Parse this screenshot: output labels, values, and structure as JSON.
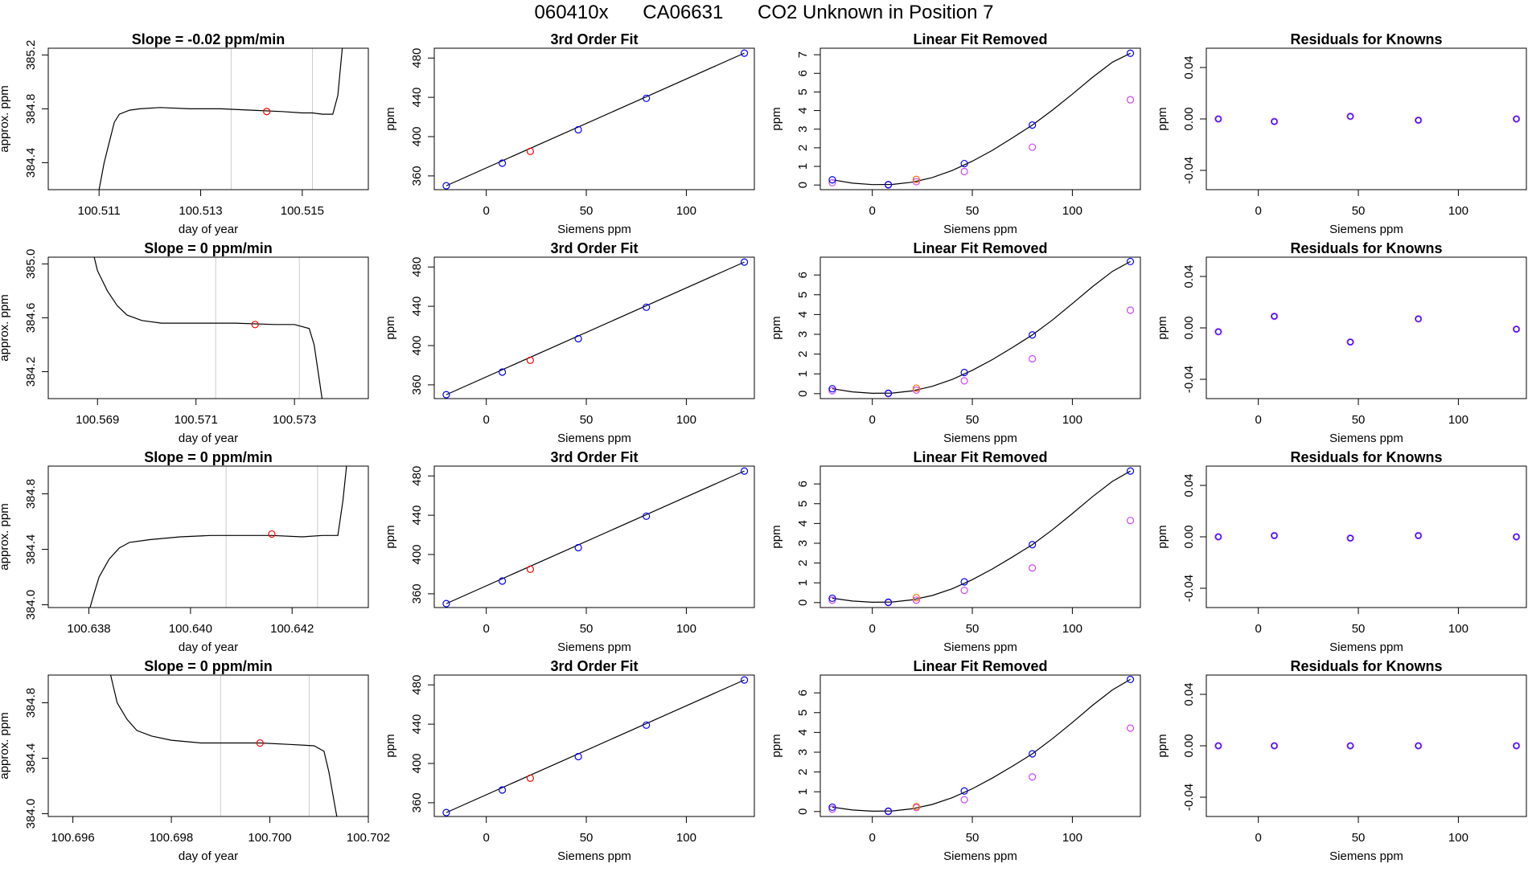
{
  "header": {
    "run_id": "060410x",
    "tank_id": "CA06631",
    "description": "CO2 Unknown in Position  7"
  },
  "colors": {
    "known": "#0000ff",
    "unknown": "#ff0000",
    "residual_unknown": "#ff6a00",
    "nonlinear_points": "#cc44ff",
    "vertical_lines": "#cccccc",
    "trace": "#000000"
  },
  "chart_data": [
    {
      "type": "line",
      "title": "Slope =  -0.02  ppm/min",
      "xlabel": "day of year",
      "ylabel": "approx. ppm",
      "xlim": [
        100.51,
        100.5163
      ],
      "ylim": [
        384.2,
        385.25
      ],
      "xticks": [
        "100.511",
        "100.513",
        "100.515"
      ],
      "xtick_values": [
        100.511,
        100.513,
        100.515
      ],
      "yticks": [
        "384.4",
        "384.8",
        "385.2"
      ],
      "ytick_values": [
        384.4,
        384.8,
        385.2
      ],
      "vlines": [
        100.5136,
        100.5152
      ],
      "trace": {
        "x": [
          100.511,
          100.5111,
          100.5112,
          100.5113,
          100.5114,
          100.5116,
          100.5118,
          100.5122,
          100.5128,
          100.5134,
          100.514,
          100.5146,
          100.515,
          100.5152,
          100.5154,
          100.5156,
          100.5157,
          100.5158
        ],
        "y": [
          384.2,
          384.4,
          384.55,
          384.7,
          384.76,
          384.79,
          384.8,
          384.81,
          384.8,
          384.8,
          384.79,
          384.78,
          384.77,
          384.77,
          384.76,
          384.76,
          384.9,
          385.3
        ]
      },
      "marker": {
        "x": 100.5143,
        "y": 384.78
      }
    },
    {
      "type": "scatter",
      "title": "3rd Order Fit",
      "xlabel": "Siemens ppm",
      "ylabel": "ppm",
      "xlim": [
        -26,
        134
      ],
      "ylim": [
        346,
        490
      ],
      "xticks": [
        "0",
        "50",
        "100"
      ],
      "xtick_values": [
        0,
        50,
        100
      ],
      "yticks": [
        "360",
        "400",
        "440",
        "480"
      ],
      "ytick_values": [
        360,
        400,
        440,
        480
      ],
      "known": {
        "x": [
          -20,
          8,
          46,
          80,
          129
        ],
        "y": [
          350,
          373,
          407,
          439,
          485
        ]
      },
      "unknown": {
        "x": [
          22
        ],
        "y": [
          385
        ]
      },
      "fit_line": {
        "x": [
          -20,
          129
        ],
        "y": [
          350,
          485
        ]
      }
    },
    {
      "type": "scatter",
      "title": "Linear Fit Removed",
      "xlabel": "Siemens ppm",
      "ylabel": "ppm",
      "xlim": [
        -26,
        134
      ],
      "ylim": [
        -0.25,
        7.35
      ],
      "xticks": [
        "0",
        "50",
        "100"
      ],
      "xtick_values": [
        0,
        50,
        100
      ],
      "yticks": [
        "0",
        "1",
        "2",
        "3",
        "4",
        "5",
        "6",
        "7"
      ],
      "ytick_values": [
        0,
        1,
        2,
        3,
        4,
        5,
        6,
        7
      ],
      "known": {
        "x": [
          -20,
          8,
          46,
          80,
          129
        ],
        "y": [
          0.28,
          0.02,
          1.15,
          3.22,
          7.08
        ]
      },
      "unknown": {
        "x": [
          22
        ],
        "y": [
          0.3
        ]
      },
      "secondary": {
        "x": [
          -20,
          8,
          22,
          46,
          80,
          129
        ],
        "y": [
          0.12,
          0.0,
          0.18,
          0.72,
          2.03,
          4.58
        ]
      },
      "curve": {
        "x": [
          -20,
          -10,
          0,
          10,
          20,
          30,
          40,
          50,
          60,
          70,
          80,
          90,
          100,
          110,
          120,
          129
        ],
        "y": [
          0.28,
          0.1,
          0.02,
          0.03,
          0.15,
          0.4,
          0.78,
          1.28,
          1.86,
          2.53,
          3.22,
          4.02,
          4.88,
          5.78,
          6.6,
          7.08
        ]
      }
    },
    {
      "type": "scatter",
      "title": "Residuals for Knowns",
      "xlabel": "Siemens ppm",
      "ylabel": "ppm",
      "xlim": [
        -26,
        134
      ],
      "ylim": [
        -0.055,
        0.055
      ],
      "xticks": [
        "0",
        "50",
        "100"
      ],
      "xtick_values": [
        0,
        50,
        100
      ],
      "yticks": [
        "-0.04",
        "0.00",
        "0.04"
      ],
      "ytick_values": [
        -0.04,
        0.0,
        0.04
      ],
      "known": {
        "x": [
          -20,
          8,
          46,
          80,
          129
        ],
        "y": [
          0.0,
          -0.002,
          0.002,
          -0.001,
          0.0
        ]
      }
    },
    {
      "type": "line",
      "title": "Slope =  0  ppm/min",
      "xlabel": "day of year",
      "ylabel": "approx. ppm",
      "xlim": [
        100.568,
        100.5745
      ],
      "ylim": [
        384.0,
        385.05
      ],
      "xticks": [
        "100.569",
        "100.571",
        "100.573"
      ],
      "xtick_values": [
        100.569,
        100.571,
        100.573
      ],
      "yticks": [
        "384.2",
        "384.6",
        "385.0"
      ],
      "ytick_values": [
        384.2,
        384.6,
        385.0
      ],
      "vlines": [
        100.5714,
        100.5731
      ],
      "trace": {
        "x": [
          100.5689,
          100.569,
          100.5692,
          100.5694,
          100.5696,
          100.5699,
          100.5703,
          100.571,
          100.5718,
          100.5726,
          100.573,
          100.5733,
          100.5734,
          100.5735,
          100.5736
        ],
        "y": [
          385.1,
          384.95,
          384.8,
          384.69,
          384.62,
          384.58,
          384.56,
          384.56,
          384.56,
          384.55,
          384.55,
          384.52,
          384.4,
          384.15,
          383.9
        ]
      },
      "marker": {
        "x": 100.5722,
        "y": 384.55
      }
    },
    {
      "type": "scatter",
      "title": "3rd Order Fit",
      "xlabel": "Siemens ppm",
      "ylabel": "ppm",
      "xlim": [
        -26,
        134
      ],
      "ylim": [
        346,
        490
      ],
      "xticks": [
        "0",
        "50",
        "100"
      ],
      "xtick_values": [
        0,
        50,
        100
      ],
      "yticks": [
        "360",
        "400",
        "440",
        "480"
      ],
      "ytick_values": [
        360,
        400,
        440,
        480
      ],
      "known": {
        "x": [
          -20,
          8,
          46,
          80,
          129
        ],
        "y": [
          350,
          373,
          407,
          439,
          485
        ]
      },
      "unknown": {
        "x": [
          22
        ],
        "y": [
          385
        ]
      },
      "fit_line": {
        "x": [
          -20,
          129
        ],
        "y": [
          350,
          485
        ]
      }
    },
    {
      "type": "scatter",
      "title": "Linear Fit Removed",
      "xlabel": "Siemens ppm",
      "ylabel": "ppm",
      "xlim": [
        -26,
        134
      ],
      "ylim": [
        -0.25,
        6.9
      ],
      "xticks": [
        "0",
        "50",
        "100"
      ],
      "xtick_values": [
        0,
        50,
        100
      ],
      "yticks": [
        "0",
        "1",
        "2",
        "3",
        "4",
        "5",
        "6"
      ],
      "ytick_values": [
        0,
        1,
        2,
        3,
        4,
        5,
        6
      ],
      "known": {
        "x": [
          -20,
          8,
          46,
          80,
          129
        ],
        "y": [
          0.25,
          0.02,
          1.07,
          2.97,
          6.68
        ]
      },
      "unknown": {
        "x": [
          22
        ],
        "y": [
          0.28
        ]
      },
      "secondary": {
        "x": [
          -20,
          8,
          22,
          46,
          80,
          129
        ],
        "y": [
          0.15,
          0.0,
          0.18,
          0.65,
          1.76,
          4.22
        ]
      },
      "curve": {
        "x": [
          -20,
          -10,
          0,
          10,
          20,
          30,
          40,
          50,
          60,
          70,
          80,
          90,
          100,
          110,
          120,
          129
        ],
        "y": [
          0.25,
          0.09,
          0.02,
          0.03,
          0.14,
          0.37,
          0.72,
          1.18,
          1.72,
          2.33,
          2.97,
          3.72,
          4.55,
          5.4,
          6.18,
          6.68
        ]
      }
    },
    {
      "type": "scatter",
      "title": "Residuals for Knowns",
      "xlabel": "Siemens ppm",
      "ylabel": "ppm",
      "xlim": [
        -26,
        134
      ],
      "ylim": [
        -0.055,
        0.055
      ],
      "xticks": [
        "0",
        "50",
        "100"
      ],
      "xtick_values": [
        0,
        50,
        100
      ],
      "yticks": [
        "-0.04",
        "0.00",
        "0.04"
      ],
      "ytick_values": [
        -0.04,
        0.0,
        0.04
      ],
      "known": {
        "x": [
          -20,
          8,
          46,
          80,
          129
        ],
        "y": [
          -0.003,
          0.009,
          -0.011,
          0.007,
          -0.001
        ]
      }
    },
    {
      "type": "line",
      "title": "Slope =  0  ppm/min",
      "xlabel": "day of year",
      "ylabel": "approx. ppm",
      "xlim": [
        100.6372,
        100.6435
      ],
      "ylim": [
        383.98,
        385.0
      ],
      "xticks": [
        "100.638",
        "100.640",
        "100.642"
      ],
      "xtick_values": [
        100.638,
        100.64,
        100.642
      ],
      "yticks": [
        "384.0",
        "384.4",
        "384.8"
      ],
      "ytick_values": [
        384.0,
        384.4,
        384.8
      ],
      "vlines": [
        100.6407,
        100.6425
      ],
      "trace": {
        "x": [
          100.638,
          100.6381,
          100.6382,
          100.6384,
          100.6386,
          100.6388,
          100.6392,
          100.6398,
          100.6404,
          100.641,
          100.6416,
          100.6422,
          100.6426,
          100.6429,
          100.643,
          100.6431
        ],
        "y": [
          383.95,
          384.08,
          384.2,
          384.33,
          384.41,
          384.45,
          384.47,
          384.49,
          384.5,
          384.5,
          384.5,
          384.49,
          384.5,
          384.5,
          384.75,
          385.1
        ]
      },
      "marker": {
        "x": 100.6416,
        "y": 384.51
      }
    },
    {
      "type": "scatter",
      "title": "3rd Order Fit",
      "xlabel": "Siemens ppm",
      "ylabel": "ppm",
      "xlim": [
        -26,
        134
      ],
      "ylim": [
        346,
        490
      ],
      "xticks": [
        "0",
        "50",
        "100"
      ],
      "xtick_values": [
        0,
        50,
        100
      ],
      "yticks": [
        "360",
        "400",
        "440",
        "480"
      ],
      "ytick_values": [
        360,
        400,
        440,
        480
      ],
      "known": {
        "x": [
          -20,
          8,
          46,
          80,
          129
        ],
        "y": [
          350,
          373,
          407,
          439,
          485
        ]
      },
      "unknown": {
        "x": [
          22
        ],
        "y": [
          385
        ]
      },
      "fit_line": {
        "x": [
          -20,
          129
        ],
        "y": [
          350,
          485
        ]
      }
    },
    {
      "type": "scatter",
      "title": "Linear Fit Removed",
      "xlabel": "Siemens ppm",
      "ylabel": "ppm",
      "xlim": [
        -26,
        134
      ],
      "ylim": [
        -0.25,
        6.9
      ],
      "xticks": [
        "0",
        "50",
        "100"
      ],
      "xtick_values": [
        0,
        50,
        100
      ],
      "yticks": [
        "0",
        "1",
        "2",
        "3",
        "4",
        "5",
        "6"
      ],
      "ytick_values": [
        0,
        1,
        2,
        3,
        4,
        5,
        6
      ],
      "known": {
        "x": [
          -20,
          8,
          46,
          80,
          129
        ],
        "y": [
          0.22,
          0.02,
          1.05,
          2.93,
          6.65
        ]
      },
      "unknown": {
        "x": [
          22
        ],
        "y": [
          0.25
        ]
      },
      "secondary": {
        "x": [
          -20,
          8,
          22,
          46,
          80,
          129
        ],
        "y": [
          0.12,
          0.0,
          0.12,
          0.62,
          1.75,
          4.15
        ]
      },
      "curve": {
        "x": [
          -20,
          -10,
          0,
          10,
          20,
          30,
          40,
          50,
          60,
          70,
          80,
          90,
          100,
          110,
          120,
          129
        ],
        "y": [
          0.22,
          0.08,
          0.02,
          0.03,
          0.14,
          0.36,
          0.7,
          1.16,
          1.7,
          2.3,
          2.93,
          3.68,
          4.5,
          5.35,
          6.13,
          6.65
        ]
      }
    },
    {
      "type": "scatter",
      "title": "Residuals for Knowns",
      "xlabel": "Siemens ppm",
      "ylabel": "ppm",
      "xlim": [
        -26,
        134
      ],
      "ylim": [
        -0.055,
        0.055
      ],
      "xticks": [
        "0",
        "50",
        "100"
      ],
      "xtick_values": [
        0,
        50,
        100
      ],
      "yticks": [
        "-0.04",
        "0.00",
        "0.04"
      ],
      "ytick_values": [
        -0.04,
        0.0,
        0.04
      ],
      "known": {
        "x": [
          -20,
          8,
          46,
          80,
          129
        ],
        "y": [
          0.0,
          0.001,
          -0.001,
          0.001,
          0.0
        ]
      }
    },
    {
      "type": "line",
      "title": "Slope =  0  ppm/min",
      "xlabel": "day of year",
      "ylabel": "approx. ppm",
      "xlim": [
        100.6955,
        100.702
      ],
      "ylim": [
        383.98,
        385.0
      ],
      "xticks": [
        "100.696",
        "100.698",
        "100.700",
        "100.702"
      ],
      "xtick_values": [
        100.696,
        100.698,
        100.7,
        100.702
      ],
      "yticks": [
        "384.0",
        "384.4",
        "384.8"
      ],
      "ytick_values": [
        384.0,
        384.4,
        384.8
      ],
      "vlines": [
        100.699,
        100.7008
      ],
      "trace": {
        "x": [
          100.6967,
          100.6968,
          100.6969,
          100.6971,
          100.6973,
          100.6976,
          100.698,
          100.6986,
          100.6992,
          100.6998,
          100.7004,
          100.7009,
          100.7011,
          100.7012,
          100.7013,
          100.7014
        ],
        "y": [
          385.1,
          384.95,
          384.8,
          384.68,
          384.6,
          384.56,
          384.53,
          384.51,
          384.51,
          384.51,
          384.5,
          384.49,
          384.45,
          384.3,
          384.1,
          383.9
        ]
      },
      "marker": {
        "x": 100.6998,
        "y": 384.51
      }
    },
    {
      "type": "scatter",
      "title": "3rd Order Fit",
      "xlabel": "Siemens ppm",
      "ylabel": "ppm",
      "xlim": [
        -26,
        134
      ],
      "ylim": [
        346,
        490
      ],
      "xticks": [
        "0",
        "50",
        "100"
      ],
      "xtick_values": [
        0,
        50,
        100
      ],
      "yticks": [
        "360",
        "400",
        "440",
        "480"
      ],
      "ytick_values": [
        360,
        400,
        440,
        480
      ],
      "known": {
        "x": [
          -20,
          8,
          46,
          80,
          129
        ],
        "y": [
          350,
          373,
          407,
          439,
          485
        ]
      },
      "unknown": {
        "x": [
          22
        ],
        "y": [
          385
        ]
      },
      "fit_line": {
        "x": [
          -20,
          129
        ],
        "y": [
          350,
          485
        ]
      }
    },
    {
      "type": "scatter",
      "title": "Linear Fit Removed",
      "xlabel": "Siemens ppm",
      "ylabel": "ppm",
      "xlim": [
        -26,
        134
      ],
      "ylim": [
        -0.25,
        6.9
      ],
      "xticks": [
        "0",
        "50",
        "100"
      ],
      "xtick_values": [
        0,
        50,
        100
      ],
      "yticks": [
        "0",
        "1",
        "2",
        "3",
        "4",
        "5",
        "6"
      ],
      "ytick_values": [
        0,
        1,
        2,
        3,
        4,
        5,
        6
      ],
      "known": {
        "x": [
          -20,
          8,
          46,
          80,
          129
        ],
        "y": [
          0.22,
          0.02,
          1.04,
          2.92,
          6.68
        ]
      },
      "unknown": {
        "x": [
          22
        ],
        "y": [
          0.25
        ]
      },
      "secondary": {
        "x": [
          -20,
          8,
          22,
          46,
          80,
          129
        ],
        "y": [
          0.12,
          0.0,
          0.2,
          0.6,
          1.75,
          4.22
        ]
      },
      "curve": {
        "x": [
          -20,
          -10,
          0,
          10,
          20,
          30,
          40,
          50,
          60,
          70,
          80,
          90,
          100,
          110,
          120,
          129
        ],
        "y": [
          0.22,
          0.08,
          0.02,
          0.03,
          0.14,
          0.36,
          0.7,
          1.15,
          1.69,
          2.29,
          2.92,
          3.68,
          4.5,
          5.36,
          6.15,
          6.68
        ]
      }
    },
    {
      "type": "scatter",
      "title": "Residuals for Knowns",
      "xlabel": "Siemens ppm",
      "ylabel": "ppm",
      "xlim": [
        -26,
        134
      ],
      "ylim": [
        -0.055,
        0.055
      ],
      "xticks": [
        "0",
        "50",
        "100"
      ],
      "xtick_values": [
        0,
        50,
        100
      ],
      "yticks": [
        "-0.04",
        "0.00",
        "0.04"
      ],
      "ytick_values": [
        -0.04,
        0.0,
        0.04
      ],
      "known": {
        "x": [
          -20,
          8,
          46,
          80,
          129
        ],
        "y": [
          0.0,
          0.0,
          0.0,
          0.0,
          0.0
        ]
      }
    }
  ]
}
